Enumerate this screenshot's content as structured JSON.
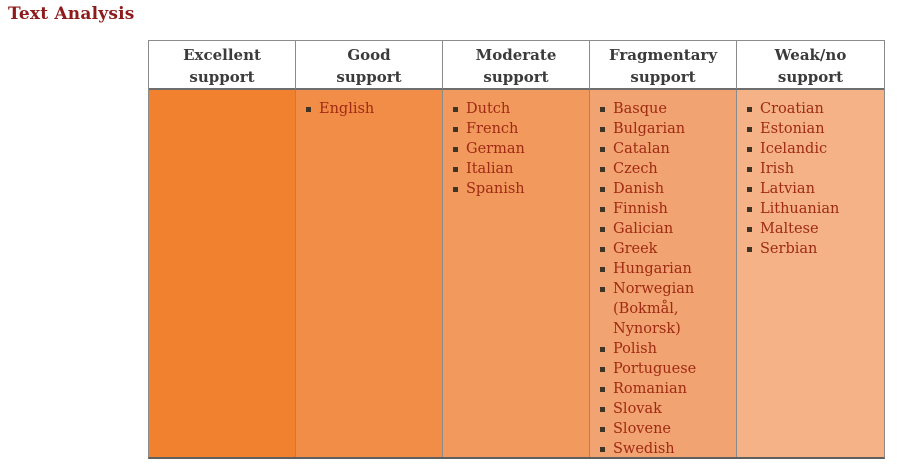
{
  "page_title": "Text Analysis",
  "table": {
    "columns": [
      {
        "key": "excellent",
        "header_lines": [
          "Excellent",
          "support"
        ],
        "bg": "#F1802F",
        "items": []
      },
      {
        "key": "good",
        "header_lines": [
          "Good",
          "support"
        ],
        "bg": "#F28D47",
        "items": [
          "English"
        ]
      },
      {
        "key": "moderate",
        "header_lines": [
          "Moderate",
          "support"
        ],
        "bg": "#F2995D",
        "items": [
          "Dutch",
          "French",
          "German",
          "Italian",
          "Spanish"
        ]
      },
      {
        "key": "fragmentary",
        "header_lines": [
          "Fragmentary",
          "support"
        ],
        "bg": "#F2A372",
        "items": [
          "Basque",
          "Bulgarian",
          "Catalan",
          "Czech",
          "Danish",
          "Finnish",
          "Galician",
          "Greek",
          "Hungarian",
          "Norwegian (Bokmål, Nynorsk)",
          "Polish",
          "Portuguese",
          "Romanian",
          "Slovak",
          "Slovene",
          "Swedish"
        ]
      },
      {
        "key": "weak-no",
        "header_lines": [
          "Weak/no",
          "support"
        ],
        "bg": "#F5B286",
        "items": [
          "Croatian",
          "Estonian",
          "Icelandic",
          "Irish",
          "Latvian",
          "Lithuanian",
          "Maltese",
          "Serbian"
        ]
      }
    ]
  },
  "icons": {
    "list_bullet": "square-bullet-icon"
  },
  "colors": {
    "title": "#8E1B1B",
    "header_text": "#3B3B3B",
    "item_text": "#9F2A13",
    "bullet": "#403427",
    "border": "#8B8B8B"
  }
}
